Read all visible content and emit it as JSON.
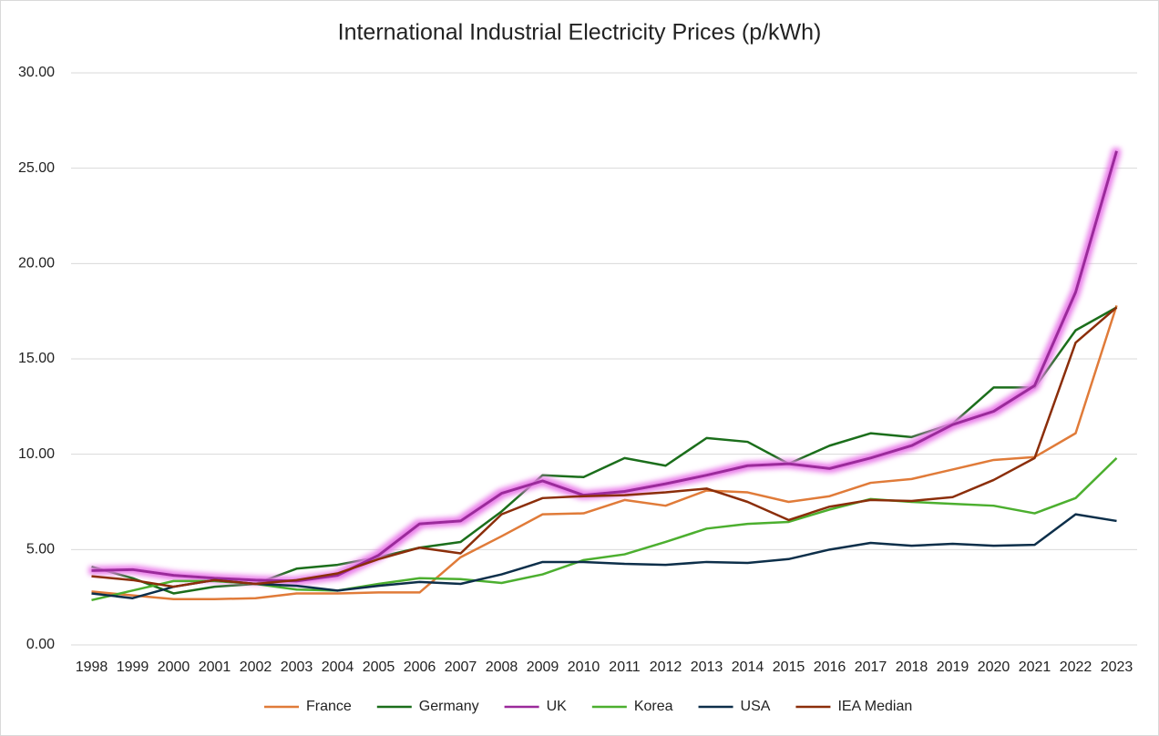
{
  "chart_data": {
    "type": "line",
    "title": "International Industrial Electricity Prices (p/kWh)",
    "categories": [
      "1998",
      "1999",
      "2000",
      "2001",
      "2002",
      "2003",
      "2004",
      "2005",
      "2006",
      "2007",
      "2008",
      "2009",
      "2010",
      "2011",
      "2012",
      "2013",
      "2014",
      "2015",
      "2016",
      "2017",
      "2018",
      "2019",
      "2020",
      "2021",
      "2022",
      "2023"
    ],
    "ylim": [
      0,
      30
    ],
    "yticks": [
      {
        "value": 0,
        "label": "0.00"
      },
      {
        "value": 5,
        "label": "5.00"
      },
      {
        "value": 10,
        "label": "10.00"
      },
      {
        "value": 15,
        "label": "15.00"
      },
      {
        "value": 20,
        "label": "20.00"
      },
      {
        "value": 25,
        "label": "25.00"
      },
      {
        "value": 30,
        "label": "30.00"
      }
    ],
    "grid": true,
    "legend": "bottom",
    "series": [
      {
        "name": "France",
        "color": "#e07b39",
        "values": [
          2.8,
          2.6,
          2.4,
          2.4,
          2.45,
          2.7,
          2.7,
          2.75,
          2.75,
          4.6,
          5.7,
          6.85,
          6.9,
          7.6,
          7.3,
          8.1,
          8.0,
          7.5,
          7.8,
          8.5,
          8.7,
          9.2,
          9.7,
          9.85,
          11.1,
          17.8
        ]
      },
      {
        "name": "Germany",
        "color": "#1b6e1b",
        "values": [
          4.1,
          3.5,
          2.7,
          3.05,
          3.2,
          4.0,
          4.2,
          4.6,
          5.1,
          5.4,
          7.0,
          8.9,
          8.8,
          9.8,
          9.4,
          10.85,
          10.65,
          9.5,
          10.45,
          11.1,
          10.9,
          11.6,
          13.5,
          13.5,
          16.5,
          17.7
        ]
      },
      {
        "name": "UK",
        "color": "#9b2a9b",
        "highlight": true,
        "values": [
          3.9,
          3.95,
          3.65,
          3.5,
          3.4,
          3.35,
          3.65,
          4.7,
          6.35,
          6.5,
          7.95,
          8.6,
          7.85,
          8.05,
          8.45,
          8.9,
          9.4,
          9.5,
          9.25,
          9.8,
          10.45,
          11.55,
          12.25,
          13.6,
          18.5,
          25.9
        ]
      },
      {
        "name": "Korea",
        "color": "#4caf2f",
        "values": [
          2.35,
          2.85,
          3.35,
          3.35,
          3.2,
          2.9,
          2.85,
          3.2,
          3.5,
          3.45,
          3.25,
          3.7,
          4.45,
          4.75,
          5.4,
          6.1,
          6.35,
          6.45,
          7.1,
          7.65,
          7.5,
          7.4,
          7.3,
          6.9,
          7.7,
          9.8
        ]
      },
      {
        "name": "USA",
        "color": "#0d2f4a",
        "values": [
          2.7,
          2.45,
          3.05,
          3.4,
          3.2,
          3.1,
          2.85,
          3.1,
          3.3,
          3.2,
          3.7,
          4.35,
          4.35,
          4.25,
          4.2,
          4.35,
          4.3,
          4.5,
          5.0,
          5.35,
          5.2,
          5.3,
          5.2,
          5.25,
          6.85,
          6.5
        ]
      },
      {
        "name": "IEA Median",
        "color": "#8b2e0a",
        "values": [
          3.6,
          3.4,
          3.05,
          3.4,
          3.2,
          3.4,
          3.75,
          4.5,
          5.1,
          4.8,
          6.85,
          7.7,
          7.8,
          7.85,
          8.0,
          8.2,
          7.5,
          6.55,
          7.25,
          7.6,
          7.55,
          7.75,
          8.65,
          9.8,
          15.85,
          17.7
        ]
      }
    ]
  }
}
